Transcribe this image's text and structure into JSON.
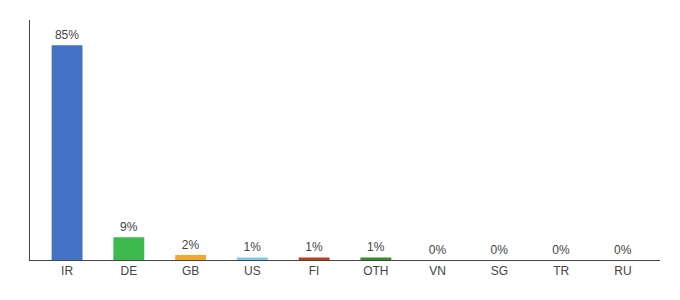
{
  "chart_data": {
    "type": "bar",
    "categories": [
      "IR",
      "DE",
      "GB",
      "US",
      "FI",
      "OTH",
      "VN",
      "SG",
      "TR",
      "RU"
    ],
    "values": [
      85,
      9,
      2,
      1,
      1,
      1,
      0,
      0,
      0,
      0
    ],
    "value_labels": [
      "85%",
      "9%",
      "2%",
      "1%",
      "1%",
      "1%",
      "0%",
      "0%",
      "0%",
      "0%"
    ],
    "colors": [
      "#4472c4",
      "#3dba4e",
      "#f0a830",
      "#82c8e8",
      "#b84020",
      "#3a8a30",
      "#cccccc",
      "#cccccc",
      "#cccccc",
      "#cccccc"
    ],
    "ylim": [
      0,
      95
    ],
    "yticks": [],
    "data_labels": true,
    "tick_labels": "x",
    "grid": false
  }
}
